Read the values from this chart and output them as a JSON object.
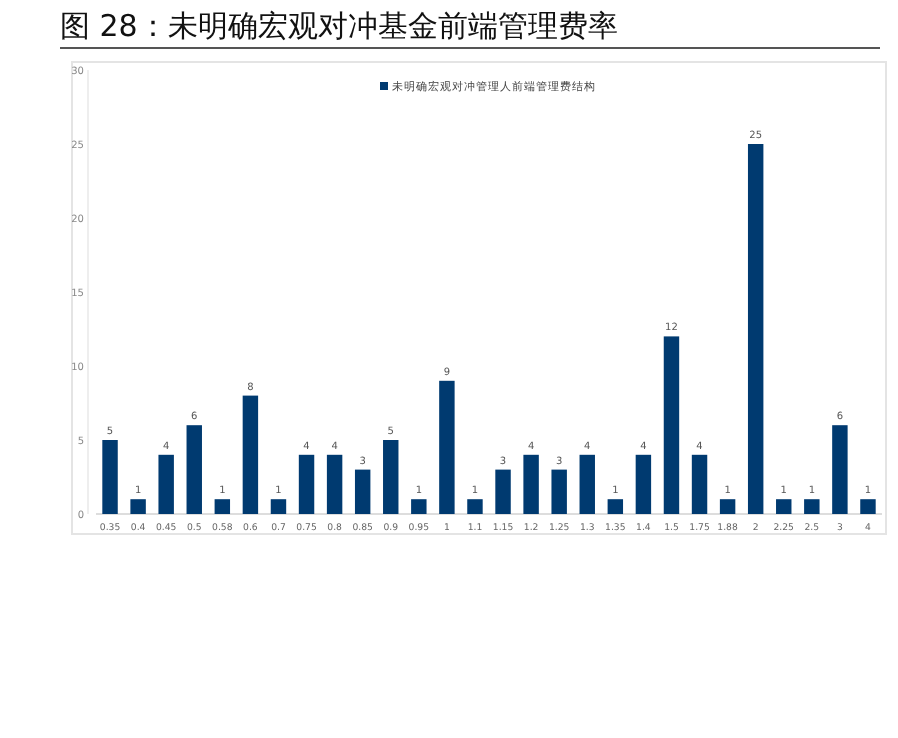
{
  "chart_data": {
    "type": "bar",
    "title": "图 28：未明确宏观对冲基金前端管理费率",
    "categories": [
      "0.35",
      "0.4",
      "0.45",
      "0.5",
      "0.58",
      "0.6",
      "0.7",
      "0.75",
      "0.8",
      "0.85",
      "0.9",
      "0.95",
      "1",
      "1.1",
      "1.15",
      "1.2",
      "1.25",
      "1.3",
      "1.35",
      "1.4",
      "1.5",
      "1.75",
      "1.88",
      "2",
      "2.25",
      "2.5",
      "3",
      "4"
    ],
    "series": [
      {
        "name": "未明确宏观对冲管理人前端管理费结构",
        "color": "#003a70",
        "values": [
          5,
          1,
          4,
          6,
          1,
          8,
          1,
          4,
          4,
          3,
          5,
          1,
          9,
          1,
          3,
          4,
          3,
          4,
          1,
          4,
          12,
          4,
          1,
          25,
          1,
          1,
          6,
          1
        ]
      }
    ],
    "ylim": [
      0,
      30
    ],
    "yticks": [
      0,
      5,
      10,
      15,
      20,
      25,
      30
    ],
    "grid": false,
    "legend": "top",
    "data_labels": true
  }
}
